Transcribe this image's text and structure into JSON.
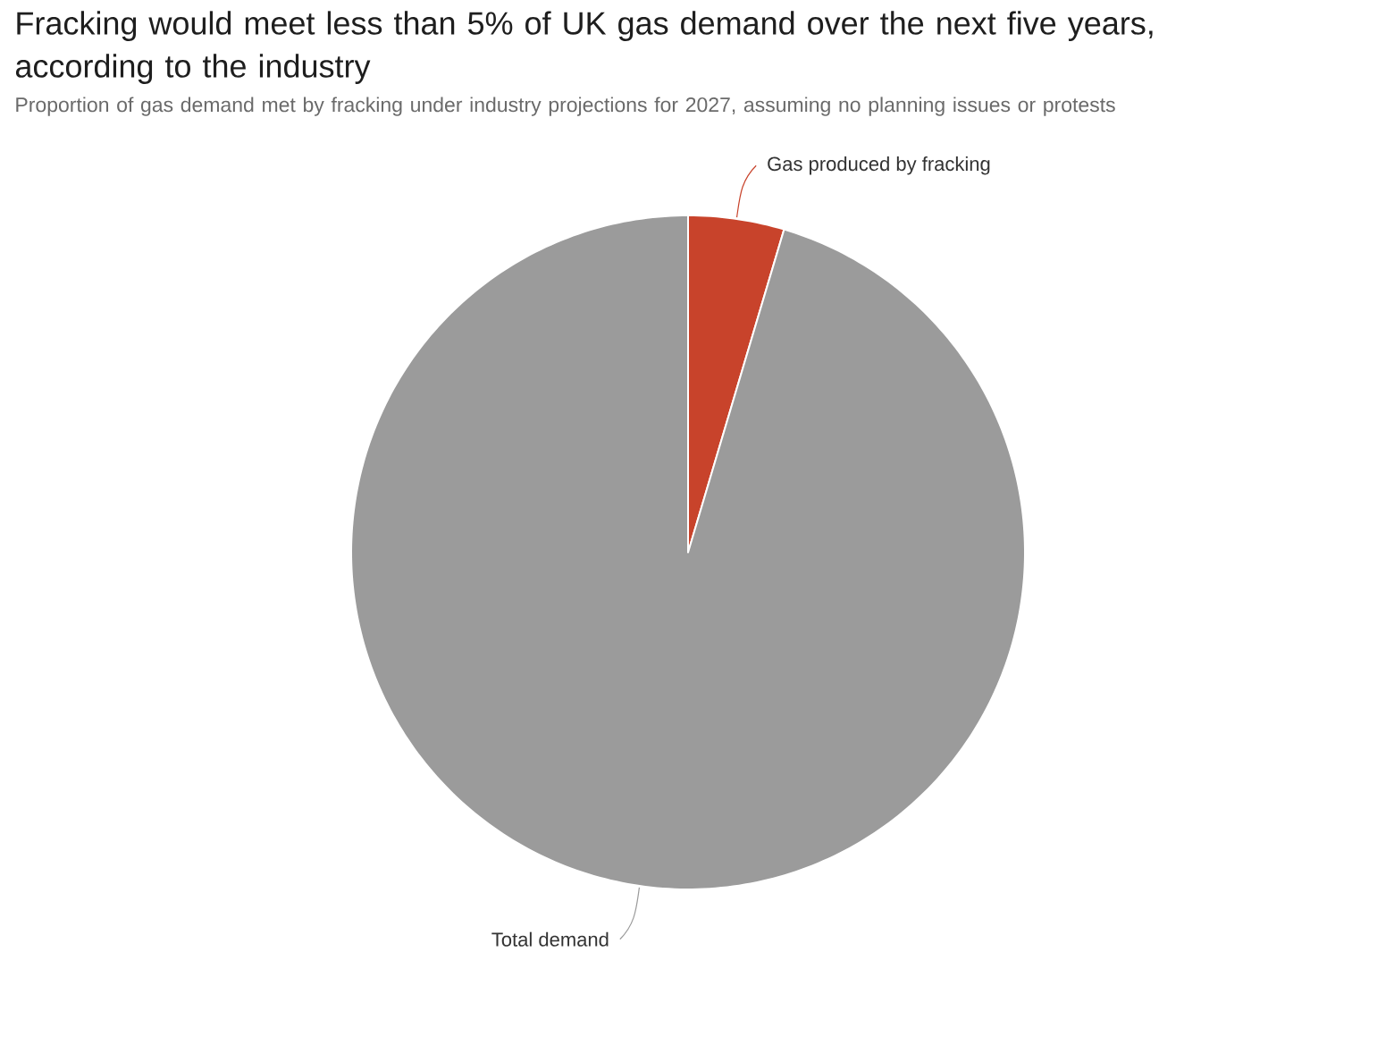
{
  "chart_data": {
    "type": "pie",
    "title": "Fracking would meet less than 5% of UK gas demand over the next five years, according to the industry",
    "subtitle": "Proportion of gas demand met by fracking under industry projections for 2027, assuming no planning issues or protests",
    "categories": [
      "Gas produced by fracking",
      "Total demand"
    ],
    "values": [
      4.6,
      95.4
    ],
    "colors": [
      "#c8432b",
      "#9b9b9b"
    ]
  }
}
